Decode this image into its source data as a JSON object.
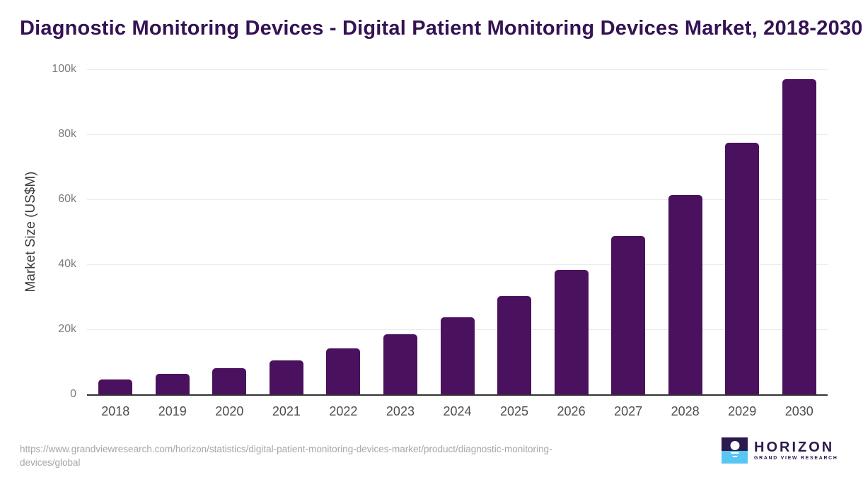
{
  "title": "Diagnostic Monitoring Devices - Digital Patient Monitoring Devices Market, 2018-2030",
  "chart_data": {
    "type": "bar",
    "title": "Diagnostic Monitoring Devices - Digital Patient Monitoring Devices Market, 2018-2030",
    "categories": [
      "2018",
      "2019",
      "2020",
      "2021",
      "2022",
      "2023",
      "2024",
      "2025",
      "2026",
      "2027",
      "2028",
      "2029",
      "2030"
    ],
    "values": [
      4500,
      6200,
      8000,
      10500,
      14100,
      18500,
      23700,
      30200,
      38300,
      48600,
      61400,
      77300,
      97000
    ],
    "values_unit": "US$M",
    "xlabel": "",
    "ylabel": "Market Size (US$M)",
    "ylim": [
      0,
      100000
    ],
    "yticks": [
      {
        "label": "0",
        "value": 0
      },
      {
        "label": "20k",
        "value": 20000
      },
      {
        "label": "40k",
        "value": 40000
      },
      {
        "label": "60k",
        "value": 60000
      },
      {
        "label": "80k",
        "value": 80000
      },
      {
        "label": "100k",
        "value": 100000
      }
    ],
    "grid": "horizontal",
    "legend": "none",
    "bar_color": "#4a115e"
  },
  "colors": {
    "title": "#341253",
    "bar": "#4a115e",
    "gridline": "#eaeaea",
    "axis_line": "#333333",
    "y_tick_text": "#7b7b7b",
    "x_tick_text": "#4e4e4e",
    "y_axis_label": "#3c3c3c",
    "source_text": "#a6a6a6",
    "logo_purple": "#2b1a4d",
    "logo_blue": "#59c5f2"
  },
  "footer": {
    "url_lines": [
      "https://www.grandviewresearch.com/horizon/statistics/digital-patient-monitoring-devices-market/product/diagnostic-monitoring-",
      "devices/global"
    ],
    "logo": {
      "brand": "HORIZON",
      "sub": "GRAND VIEW RESEARCH"
    }
  }
}
